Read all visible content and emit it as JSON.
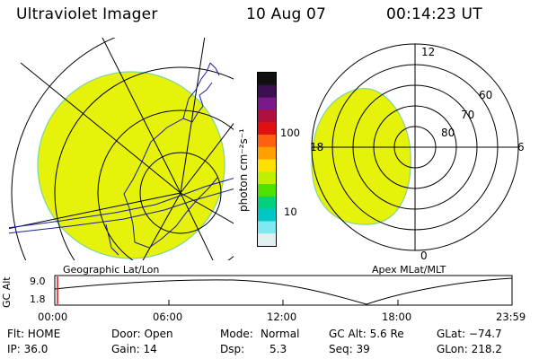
{
  "header": {
    "title": "Ultraviolet Imager",
    "date": "10 Aug 07",
    "time": "00:14:23 UT"
  },
  "left_panel": {
    "label": "Geographic Lat/Lon"
  },
  "right_panel": {
    "label": "Apex MLat/MLT",
    "mlt_labels": {
      "top": "12",
      "left": "18",
      "right": "6",
      "bottom": "0"
    },
    "lat_labels": [
      "60",
      "70",
      "80"
    ]
  },
  "colorbar": {
    "unit": "photon cm⁻²s⁻¹",
    "ticks": [
      "100",
      "10"
    ],
    "colors": [
      "#101010",
      "#3a1050",
      "#7a1a8a",
      "#b01040",
      "#e01010",
      "#ff6010",
      "#ffa000",
      "#ffe000",
      "#c0f000",
      "#50e000",
      "#00d080",
      "#00c8c8",
      "#80e8f0",
      "#e0f0f0"
    ]
  },
  "altitude_chart": {
    "ylabel": "GC Alt",
    "yticks": [
      "9.0",
      "1.8"
    ],
    "xticks": [
      "00:00",
      "06:00",
      "12:00",
      "18:00",
      "23:59"
    ]
  },
  "footer": {
    "col1": [
      "Flt: HOME",
      "IP: 36.0"
    ],
    "col2": [
      "Door: Open",
      "Gain: 14"
    ],
    "col3_label": [
      "Mode:",
      "Dsp:"
    ],
    "col3_value": [
      "Normal",
      "5.3"
    ],
    "col4": [
      "GC Alt: 5.6 Re",
      "Seq: 39"
    ],
    "col5": [
      "GLat: −74.7",
      "GLon: 218.2"
    ]
  },
  "colors": {
    "emission": "#e6f20a",
    "emission_edge": "#7fd4a0",
    "coast": "#1a1aa0"
  }
}
